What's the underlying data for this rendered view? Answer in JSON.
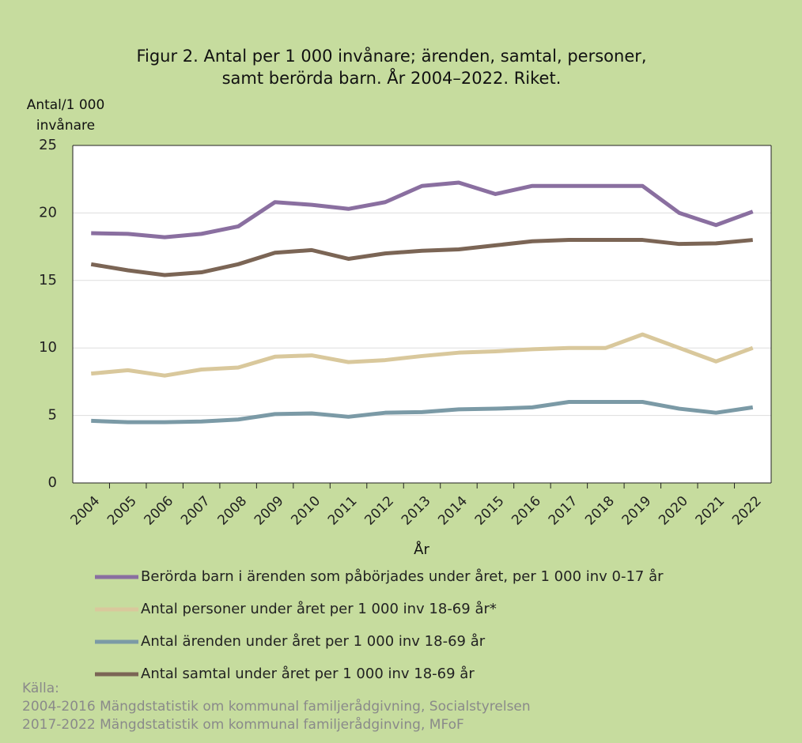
{
  "chart_data": {
    "type": "line",
    "title": "Figur 2. Antal per 1 000 invånare; ärenden, samtal, personer, samt berörda barn. År 2004–2022. Riket.",
    "y_label": "Antal/1 000 invånare",
    "x_label": "År",
    "categories": [
      "2004",
      "2005",
      "2006",
      "2007",
      "2008",
      "2009",
      "2010",
      "2011",
      "2012",
      "2013",
      "2014",
      "2015",
      "2016",
      "2017",
      "2018",
      "2019",
      "2020",
      "2021",
      "2022"
    ],
    "series": [
      {
        "name": "Berörda barn i ärenden som påbörjades under året, per 1 000 inv 0-17 år",
        "color": "#8a6fa0",
        "values": [
          18.5,
          18.45,
          18.2,
          18.45,
          19.0,
          20.8,
          20.6,
          20.3,
          20.8,
          22.0,
          22.25,
          21.4,
          22.0,
          22.0,
          22.0,
          22.0,
          20.0,
          19.1,
          20.1
        ]
      },
      {
        "name": "Antal personer under året per 1 000 inv 18-69 år*",
        "color": "#d9c89c",
        "values": [
          8.1,
          8.35,
          7.95,
          8.4,
          8.55,
          9.35,
          9.45,
          8.95,
          9.1,
          9.4,
          9.65,
          9.75,
          9.9,
          10.0,
          10.0,
          11.0,
          10.0,
          9.0,
          10.0
        ]
      },
      {
        "name": "Antal ärenden under året per 1 000 inv 18-69 år",
        "color": "#7b9aa6",
        "values": [
          4.6,
          4.5,
          4.5,
          4.55,
          4.7,
          5.1,
          5.15,
          4.9,
          5.2,
          5.25,
          5.45,
          5.5,
          5.6,
          6.0,
          6.0,
          6.0,
          5.5,
          5.2,
          5.6
        ]
      },
      {
        "name": "Antal samtal under året per 1 000 inv 18-69 år",
        "color": "#7b6555",
        "values": [
          16.2,
          15.75,
          15.4,
          15.6,
          16.2,
          17.05,
          17.25,
          16.6,
          17.0,
          17.2,
          17.3,
          17.6,
          17.9,
          18.0,
          18.0,
          18.0,
          17.7,
          17.75,
          18.0
        ]
      }
    ],
    "ylim": [
      0,
      25
    ],
    "yticks": [
      0,
      5,
      10,
      15,
      20,
      25
    ],
    "grid": true,
    "source": [
      "Källa:",
      "2004-2016 Mängdstatistik om kommunal familjerådgivning, Socialstyrelsen",
      "2017-2022 Mängdstatistik om kommunal familjerådginving, MFoF"
    ]
  }
}
